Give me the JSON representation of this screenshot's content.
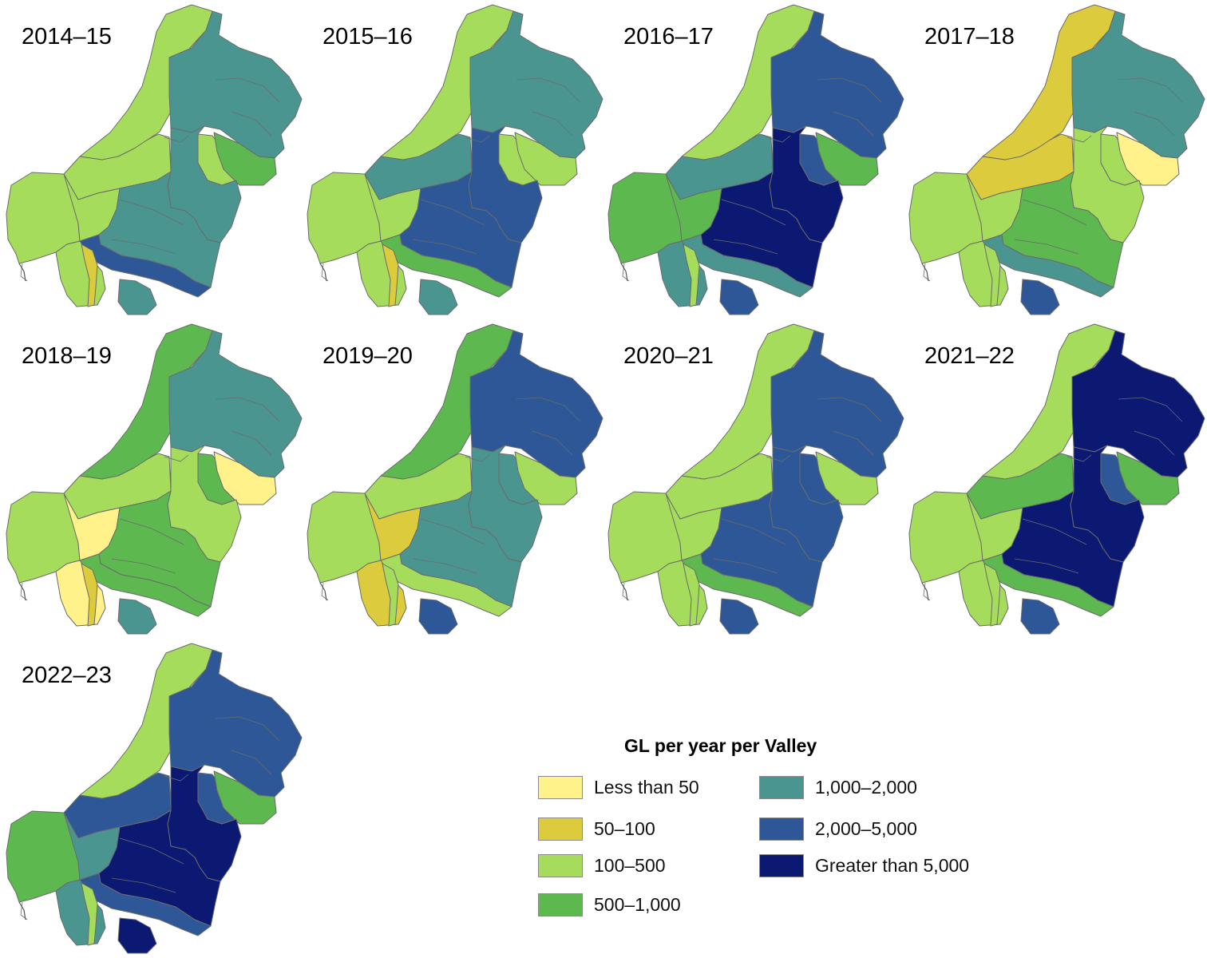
{
  "colors": {
    "lt50": "#fff28a",
    "50_100": "#dccb3c",
    "100_500": "#a6dc5c",
    "500_1000": "#5cb84f",
    "1000_2000": "#4b9591",
    "2000_5000": "#2d5796",
    "gt5000": "#0b1973",
    "boundary": "#6b6b6b"
  },
  "years": [
    {
      "label": "2014–15",
      "regions": {
        "north": "100_500",
        "ne": "1000_2000",
        "northwest": "100_500",
        "west": "100_500",
        "centre": "1000_2000",
        "mid": "1000_2000",
        "east_small": "500_1000",
        "east_patch": "100_500",
        "south_band": "2000_5000",
        "southwest": "100_500",
        "sw_strip": "50_100",
        "south_small": "1000_2000",
        "west_mid": "100_500"
      }
    },
    {
      "label": "2015–16",
      "regions": {
        "north": "100_500",
        "ne": "1000_2000",
        "northwest": "1000_2000",
        "west": "100_500",
        "centre": "2000_5000",
        "mid": "2000_5000",
        "east_small": "100_500",
        "east_patch": "100_500",
        "south_band": "500_1000",
        "southwest": "100_500",
        "sw_strip": "50_100",
        "south_small": "1000_2000",
        "west_mid": "100_500"
      }
    },
    {
      "label": "2016–17",
      "regions": {
        "north": "100_500",
        "ne": "2000_5000",
        "northwest": "1000_2000",
        "west": "500_1000",
        "centre": "gt5000",
        "mid": "gt5000",
        "east_small": "500_1000",
        "east_patch": "2000_5000",
        "south_band": "1000_2000",
        "southwest": "1000_2000",
        "sw_strip": "100_500",
        "south_small": "2000_5000",
        "west_mid": "500_1000"
      }
    },
    {
      "label": "2017–18",
      "regions": {
        "north": "50_100",
        "ne": "1000_2000",
        "northwest": "50_100",
        "west": "100_500",
        "centre": "100_500",
        "mid": "500_1000",
        "east_small": "lt50",
        "east_patch": "100_500",
        "south_band": "1000_2000",
        "southwest": "100_500",
        "sw_strip": "100_500",
        "south_small": "2000_5000",
        "west_mid": "100_500"
      }
    },
    {
      "label": "2018–19",
      "regions": {
        "north": "500_1000",
        "ne": "1000_2000",
        "northwest": "100_500",
        "west": "100_500",
        "centre": "100_500",
        "mid": "500_1000",
        "east_small": "lt50",
        "east_patch": "500_1000",
        "south_band": "500_1000",
        "southwest": "lt50",
        "sw_strip": "50_100",
        "south_small": "1000_2000",
        "west_mid": "lt50"
      }
    },
    {
      "label": "2019–20",
      "regions": {
        "north": "500_1000",
        "ne": "2000_5000",
        "northwest": "100_500",
        "west": "100_500",
        "centre": "1000_2000",
        "mid": "1000_2000",
        "east_small": "100_500",
        "east_patch": "1000_2000",
        "south_band": "100_500",
        "southwest": "50_100",
        "sw_strip": "100_500",
        "south_small": "2000_5000",
        "west_mid": "50_100"
      }
    },
    {
      "label": "2020–21",
      "regions": {
        "north": "100_500",
        "ne": "2000_5000",
        "northwest": "100_500",
        "west": "100_500",
        "centre": "2000_5000",
        "mid": "2000_5000",
        "east_small": "100_500",
        "east_patch": "2000_5000",
        "south_band": "500_1000",
        "southwest": "100_500",
        "sw_strip": "100_500",
        "south_small": "2000_5000",
        "west_mid": "100_500"
      }
    },
    {
      "label": "2021–22",
      "regions": {
        "north": "100_500",
        "ne": "gt5000",
        "northwest": "500_1000",
        "west": "100_500",
        "centre": "gt5000",
        "mid": "gt5000",
        "east_small": "500_1000",
        "east_patch": "2000_5000",
        "south_band": "500_1000",
        "southwest": "100_500",
        "sw_strip": "100_500",
        "south_small": "2000_5000",
        "west_mid": "100_500"
      }
    },
    {
      "label": "2022–23",
      "regions": {
        "north": "100_500",
        "ne": "2000_5000",
        "northwest": "2000_5000",
        "west": "500_1000",
        "centre": "gt5000",
        "mid": "gt5000",
        "east_small": "500_1000",
        "east_patch": "2000_5000",
        "south_band": "2000_5000",
        "southwest": "1000_2000",
        "sw_strip": "100_500",
        "south_small": "gt5000",
        "west_mid": "1000_2000"
      }
    }
  ],
  "legend": {
    "title": "GL per year per Valley",
    "items": [
      {
        "key": "lt50",
        "label": "Less than 50"
      },
      {
        "key": "50_100",
        "label": "50–100"
      },
      {
        "key": "100_500",
        "label": "100–500"
      },
      {
        "key": "500_1000",
        "label": "500–1,000"
      },
      {
        "key": "1000_2000",
        "label": "1,000–2,000"
      },
      {
        "key": "2000_5000",
        "label": "2,000–5,000"
      },
      {
        "key": "gt5000",
        "label": "Greater than 5,000"
      }
    ]
  }
}
